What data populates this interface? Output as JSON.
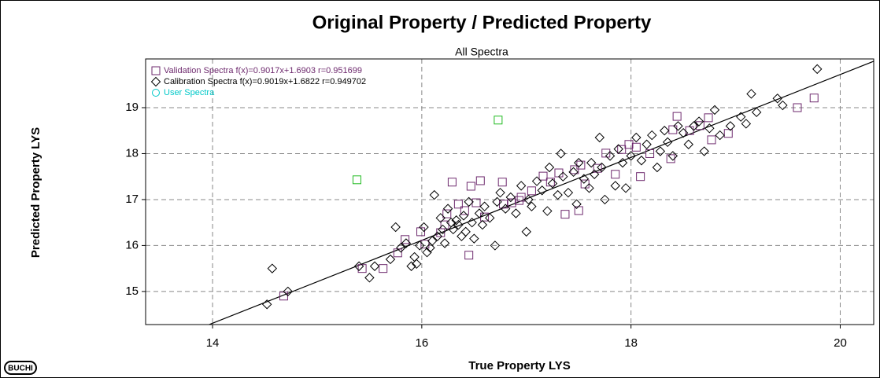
{
  "chart_data": {
    "type": "scatter",
    "title": "Original Property / Predicted Property",
    "subtitle": "All Spectra",
    "x_label": "True Property LYS",
    "y_label": "Predicted Property LYS",
    "logo": "BUCHI",
    "xlim": [
      13.36,
      20.32
    ],
    "ylim": [
      14.28,
      20.06
    ],
    "xticks": [
      14,
      16,
      18,
      20
    ],
    "yticks": [
      15,
      16,
      17,
      18,
      19
    ],
    "grid": true,
    "legend": "top-left",
    "series": [
      {
        "name": "Validation Spectra",
        "fit": "f(x)=0.9017x+1.6903  r=0.951699",
        "color": "#6e2a6e",
        "marker": "square",
        "x": [
          14.68,
          15.43,
          15.63,
          15.84,
          15.77,
          15.99,
          16.03,
          16.29,
          16.47,
          16.56,
          16.77,
          16.45,
          16.35,
          16.24,
          16.41,
          16.52,
          16.18,
          16.78,
          16.86,
          16.93,
          17.05,
          17.16,
          17.23,
          17.37,
          17.5,
          17.31,
          17.46,
          17.52,
          17.56,
          17.68,
          17.76,
          17.85,
          17.91,
          17.98,
          18.05,
          18.09,
          18.18,
          18.38,
          18.44,
          18.4,
          18.56,
          18.66,
          18.74,
          18.93,
          18.77,
          19.59,
          19.75,
          16.22,
          16.6,
          16.95
        ],
        "y": [
          14.9,
          15.5,
          15.5,
          16.13,
          15.84,
          16.3,
          16.03,
          17.38,
          17.29,
          17.41,
          17.38,
          15.79,
          16.9,
          16.69,
          16.76,
          16.93,
          16.28,
          16.9,
          16.93,
          16.98,
          17.19,
          17.51,
          17.38,
          16.68,
          16.76,
          17.58,
          17.65,
          17.75,
          17.34,
          17.68,
          18.01,
          17.55,
          18.09,
          18.2,
          18.14,
          17.5,
          18.0,
          17.89,
          18.81,
          18.52,
          18.5,
          18.61,
          18.78,
          18.44,
          18.3,
          19.0,
          19.21,
          16.45,
          16.62,
          17.05
        ]
      },
      {
        "name": "Calibration Spectra",
        "fit": "f(x)=0.9019x+1.6822  r=0.949702",
        "color": "#000000",
        "marker": "diamond",
        "x": [
          14.52,
          14.57,
          14.72,
          15.4,
          15.5,
          15.55,
          15.7,
          15.75,
          15.8,
          15.85,
          15.9,
          15.93,
          15.95,
          15.98,
          16.02,
          16.05,
          16.08,
          16.1,
          16.12,
          16.15,
          16.18,
          16.2,
          16.22,
          16.25,
          16.28,
          16.3,
          16.33,
          16.35,
          16.38,
          16.4,
          16.42,
          16.45,
          16.48,
          16.5,
          16.55,
          16.58,
          16.6,
          16.65,
          16.7,
          16.72,
          16.75,
          16.8,
          16.85,
          16.9,
          16.95,
          17.0,
          17.02,
          17.05,
          17.1,
          17.15,
          17.2,
          17.22,
          17.25,
          17.3,
          17.33,
          17.35,
          17.4,
          17.45,
          17.48,
          17.5,
          17.55,
          17.6,
          17.62,
          17.65,
          17.7,
          17.72,
          17.75,
          17.8,
          17.85,
          17.88,
          17.92,
          17.95,
          18.0,
          18.05,
          18.1,
          18.15,
          18.2,
          18.25,
          18.28,
          18.32,
          18.35,
          18.4,
          18.45,
          18.5,
          18.55,
          18.6,
          18.65,
          18.7,
          18.75,
          18.8,
          18.85,
          18.95,
          19.05,
          19.1,
          19.15,
          19.2,
          19.4,
          19.45,
          19.78
        ],
        "y": [
          14.72,
          15.5,
          15.0,
          15.55,
          15.3,
          15.55,
          15.7,
          16.4,
          15.95,
          16.05,
          15.55,
          15.75,
          15.6,
          16.0,
          16.4,
          15.85,
          15.95,
          16.1,
          17.1,
          16.2,
          16.6,
          16.35,
          16.05,
          16.8,
          16.5,
          16.35,
          16.55,
          16.45,
          16.2,
          16.65,
          16.3,
          16.95,
          16.5,
          16.15,
          16.7,
          16.45,
          16.85,
          16.6,
          16.0,
          16.95,
          17.15,
          16.8,
          17.05,
          16.7,
          17.3,
          16.3,
          17.0,
          16.85,
          17.4,
          17.2,
          16.75,
          17.7,
          17.35,
          17.1,
          18.0,
          17.5,
          17.15,
          17.6,
          16.9,
          17.8,
          17.45,
          17.25,
          17.8,
          17.55,
          18.35,
          17.7,
          17.0,
          17.95,
          17.3,
          18.1,
          17.8,
          17.25,
          17.95,
          18.35,
          17.85,
          18.2,
          18.4,
          17.7,
          18.05,
          18.5,
          18.25,
          17.95,
          18.6,
          18.45,
          18.2,
          18.6,
          18.7,
          18.05,
          18.55,
          18.95,
          18.4,
          18.6,
          18.8,
          18.65,
          19.3,
          18.9,
          19.2,
          19.05,
          19.84
        ]
      },
      {
        "name": "User Spectra",
        "color": "#00c8c8",
        "marker": "circle",
        "x": [],
        "y": []
      },
      {
        "color": "#22bb22",
        "marker": "square",
        "x": [
          15.38,
          16.73
        ],
        "y": [
          17.43,
          18.73
        ]
      }
    ],
    "fit_line": {
      "color": "#000000",
      "x": [
        13.89,
        20.32
      ],
      "y": [
        14.21,
        20.01
      ]
    }
  }
}
